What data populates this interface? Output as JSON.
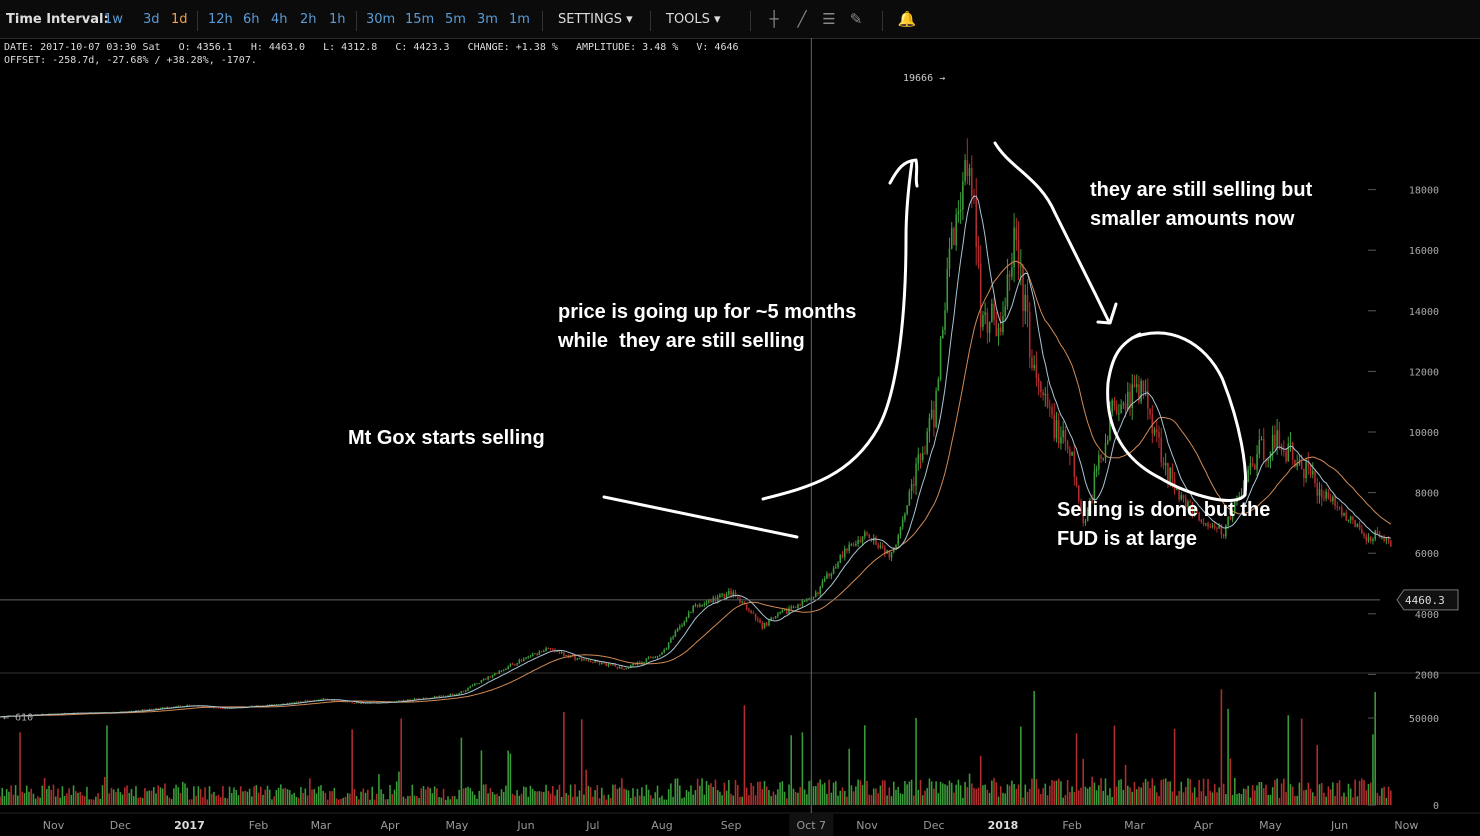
{
  "toolbar": {
    "time_interval_label": "Time Interval:",
    "intervals": [
      "1w",
      "3d",
      "1d",
      "12h",
      "6h",
      "4h",
      "2h",
      "1h",
      "30m",
      "15m",
      "5m",
      "3m",
      "1m"
    ],
    "active_interval": "1d",
    "settings_label": "SETTINGS",
    "tools_label": "TOOLS",
    "tool_icons": [
      "crosshair-icon",
      "line-tool-icon",
      "horizontal-lines-icon",
      "pen-tool-icon",
      "alert-bell-icon"
    ]
  },
  "info": {
    "line1": "DATE: 2017-10-07 03:30 Sat   O: 4356.1   H: 4463.0   L: 4312.8   C: 4423.3   CHANGE: +1.38 %   AMPLITUDE: 3.48 %   V: 4646",
    "line2": "OFFSET: -258.7d, -27.68% / +38.28%, -1707."
  },
  "colors": {
    "background": "#000000",
    "up": "#3a9c3a",
    "down": "#b22d2d",
    "ma_fast": "#a9c4d4",
    "ma_slow": "#d08a55",
    "annotation": "#ffffff",
    "interval_link": "#5b9bd5"
  },
  "chart_data": {
    "type": "candlestick",
    "title": "",
    "price_axis_ticks": [
      "18000",
      "16000",
      "14000",
      "12000",
      "10000",
      "8000",
      "6000",
      "4000",
      "2000"
    ],
    "price_ylim": [
      0,
      20500
    ],
    "volume_axis_ticks": [
      "50000",
      "0"
    ],
    "volume_ylim": [
      0,
      60000
    ],
    "x_ticks": [
      "Nov",
      "Dec",
      "2017",
      "Feb",
      "Mar",
      "Apr",
      "May",
      "Jun",
      "Jul",
      "Aug",
      "Sep",
      "Oct 7",
      "Nov",
      "Dec",
      "2018",
      "Feb",
      "Mar",
      "Apr",
      "May",
      "Jun",
      "Now"
    ],
    "x_tick_dates": [
      "2016-11-01",
      "2016-12-01",
      "2017-01-01",
      "2017-02-01",
      "2017-03-01",
      "2017-04-01",
      "2017-05-01",
      "2017-06-01",
      "2017-07-01",
      "2017-08-01",
      "2017-09-01",
      "2017-10-07",
      "2017-11-01",
      "2017-12-01",
      "2018-01-01",
      "2018-02-01",
      "2018-03-01",
      "2018-04-01",
      "2018-05-01",
      "2018-06-01",
      "2018-07-01"
    ],
    "start_price_label": "610",
    "high_marker_label": "19666",
    "crosshair_price_label": "4460.3",
    "crosshair_price": 4460.3,
    "crosshair_date": "2017-10-07",
    "price_path": [
      [
        "2016-10-08",
        610
      ],
      [
        "2016-11-01",
        700
      ],
      [
        "2016-12-01",
        750
      ],
      [
        "2017-01-01",
        980
      ],
      [
        "2017-01-15",
        880
      ],
      [
        "2017-02-01",
        960
      ],
      [
        "2017-03-01",
        1180
      ],
      [
        "2017-03-20",
        1050
      ],
      [
        "2017-04-01",
        1080
      ],
      [
        "2017-05-01",
        1350
      ],
      [
        "2017-05-25",
        2300
      ],
      [
        "2017-06-10",
        2850
      ],
      [
        "2017-06-25",
        2500
      ],
      [
        "2017-07-15",
        2200
      ],
      [
        "2017-08-01",
        2700
      ],
      [
        "2017-08-15",
        4200
      ],
      [
        "2017-09-01",
        4700
      ],
      [
        "2017-09-15",
        3600
      ],
      [
        "2017-09-30",
        4300
      ],
      [
        "2017-10-07",
        4423
      ],
      [
        "2017-10-20",
        5900
      ],
      [
        "2017-11-01",
        6700
      ],
      [
        "2017-11-12",
        5900
      ],
      [
        "2017-11-20",
        8000
      ],
      [
        "2017-12-01",
        10500
      ],
      [
        "2017-12-08",
        16000
      ],
      [
        "2017-12-17",
        19400
      ],
      [
        "2017-12-22",
        14000
      ],
      [
        "2018-01-01",
        13500
      ],
      [
        "2018-01-06",
        16500
      ],
      [
        "2018-01-16",
        11500
      ],
      [
        "2018-02-01",
        9000
      ],
      [
        "2018-02-06",
        6900
      ],
      [
        "2018-02-20",
        11000
      ],
      [
        "2018-03-05",
        11400
      ],
      [
        "2018-03-18",
        8200
      ],
      [
        "2018-04-01",
        7000
      ],
      [
        "2018-04-10",
        6700
      ],
      [
        "2018-04-25",
        9300
      ],
      [
        "2018-05-05",
        9700
      ],
      [
        "2018-05-20",
        8400
      ],
      [
        "2018-06-01",
        7500
      ],
      [
        "2018-06-13",
        6500
      ],
      [
        "2018-06-20",
        6700
      ],
      [
        "2018-06-24",
        6200
      ]
    ]
  },
  "annotations": {
    "mt_gox": "Mt Gox starts selling",
    "price_up": "price is going up for ~5 months\nwhile  they are still selling",
    "still_selling": "they are still selling but\nsmaller amounts now",
    "selling_done": "Selling is done but the\nFUD is at large"
  }
}
